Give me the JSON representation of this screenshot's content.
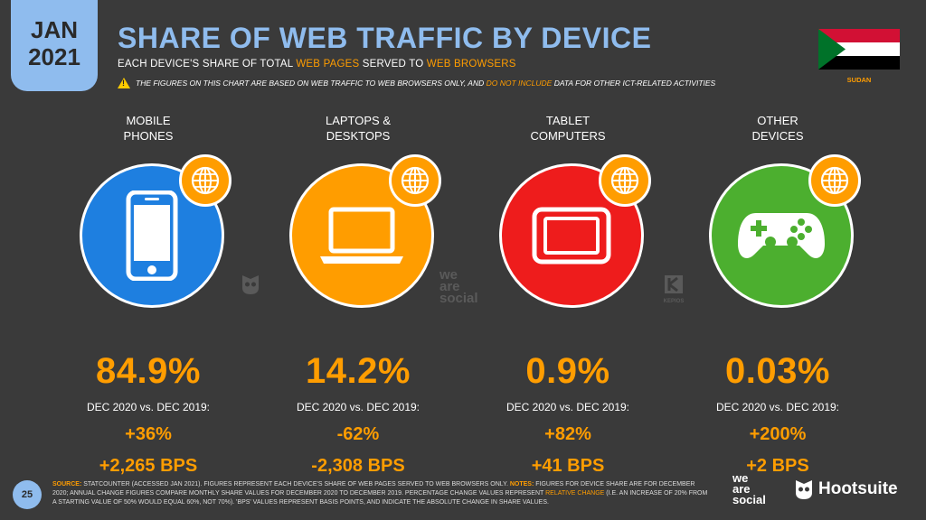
{
  "date_badge": {
    "month": "JAN",
    "year": "2021"
  },
  "title": "SHARE OF WEB TRAFFIC BY DEVICE",
  "subtitle": {
    "part1": "EACH DEVICE'S SHARE OF TOTAL ",
    "hl1": "WEB PAGES",
    "part2": " SERVED TO ",
    "hl2": "WEB BROWSERS"
  },
  "warning": {
    "part1": "THE FIGURES ON THIS CHART ARE BASED ON WEB TRAFFIC TO WEB BROWSERS ONLY, AND ",
    "hl": "DO NOT INCLUDE",
    "part2": " DATA FOR OTHER ICT-RELATED ACTIVITIES"
  },
  "country": "SUDAN",
  "period_label": "DEC 2020 vs. DEC 2019:",
  "colors": {
    "mobile": "#1e7fe0",
    "laptop": "#ff9d00",
    "tablet": "#ee1c1c",
    "other": "#4caf2f",
    "accent": "#ff9d00",
    "title": "#8fbcee"
  },
  "devices": [
    {
      "label1": "MOBILE",
      "label2": "PHONES",
      "share": "84.9%",
      "change": "+36%",
      "bps": "+2,265 BPS",
      "icon": "mobile-phone-icon"
    },
    {
      "label1": "LAPTOPS &",
      "label2": "DESKTOPS",
      "share": "14.2%",
      "change": "-62%",
      "bps": "-2,308 BPS",
      "icon": "laptop-icon"
    },
    {
      "label1": "TABLET",
      "label2": "COMPUTERS",
      "share": "0.9%",
      "change": "+82%",
      "bps": "+41 BPS",
      "icon": "tablet-icon"
    },
    {
      "label1": "OTHER",
      "label2": "DEVICES",
      "share": "0.03%",
      "change": "+200%",
      "bps": "+2 BPS",
      "icon": "game-controller-icon"
    }
  ],
  "watermarks": {
    "ws1": "we",
    "ws2": "are",
    "ws3": "social",
    "kepios": "KEPIOS"
  },
  "footer": {
    "page": "25",
    "source_label": "SOURCE:",
    "source_text": " STATCOUNTER (ACCESSED JAN 2021). FIGURES REPRESENT EACH DEVICE'S SHARE OF WEB PAGES SERVED TO WEB BROWSERS ONLY. ",
    "notes_label": "NOTES:",
    "notes_text1": " FIGURES FOR DEVICE SHARE ARE FOR DECEMBER 2020; ANNUAL CHANGE FIGURES COMPARE MONTHLY SHARE VALUES FOR DECEMBER 2020 TO DECEMBER 2019. PERCENTAGE CHANGE VALUES REPRESENT ",
    "notes_hl": "RELATIVE CHANGE",
    "notes_text2": " (I.E. AN INCREASE OF 20% FROM A STARTING VALUE OF 50% WOULD EQUAL 60%, NOT 70%). 'BPS' VALUES REPRESENT BASIS POINTS, AND INDICATE THE ABSOLUTE CHANGE IN SHARE VALUES.",
    "ws_logo1": "we",
    "ws_logo2": "are",
    "ws_logo3": "social",
    "hootsuite": "Hootsuite"
  }
}
